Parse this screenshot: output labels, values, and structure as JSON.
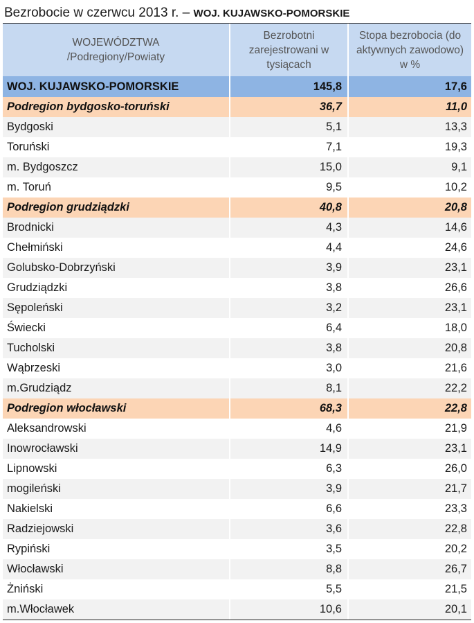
{
  "title": {
    "main": "Bezrobocie w czerwcu 2013 r. –",
    "region": "WOJ. KUJAWSKO-POMORSKIE"
  },
  "header": {
    "col1": "WOJEWÓDZTWA /Podregiony/Powiaty",
    "col2": "Bezrobotni zarejestrowani w tysiącach",
    "col3": "Stopa bezrobocia (do aktywnych zawodowo) w %"
  },
  "rows": [
    {
      "name": "WOJ. KUJAWSKO-POMORSKIE",
      "unemployed": "145,8",
      "rate": "17,6",
      "kind": "voiv"
    },
    {
      "name": "Podregion bydgosko-toruński",
      "unemployed": "36,7",
      "rate": "11,0",
      "kind": "sub"
    },
    {
      "name": "Bydgoski",
      "unemployed": "5,1",
      "rate": "13,3",
      "kind": "grey"
    },
    {
      "name": "Toruński",
      "unemployed": "7,1",
      "rate": "19,3",
      "kind": "white"
    },
    {
      "name": "m. Bydgoszcz",
      "unemployed": "15,0",
      "rate": "9,1",
      "kind": "grey"
    },
    {
      "name": "m. Toruń",
      "unemployed": "9,5",
      "rate": "10,2",
      "kind": "white"
    },
    {
      "name": "Podregion grudziądzki",
      "unemployed": "40,8",
      "rate": "20,8",
      "kind": "sub"
    },
    {
      "name": "Brodnicki",
      "unemployed": "4,3",
      "rate": "14,6",
      "kind": "grey"
    },
    {
      "name": "Chełmiński",
      "unemployed": "4,4",
      "rate": "24,6",
      "kind": "white"
    },
    {
      "name": "Golubsko-Dobrzyński",
      "unemployed": "3,9",
      "rate": "23,1",
      "kind": "grey"
    },
    {
      "name": "Grudziądzki",
      "unemployed": "3,8",
      "rate": "26,6",
      "kind": "white"
    },
    {
      "name": "Sępoleński",
      "unemployed": "3,2",
      "rate": "23,1",
      "kind": "grey"
    },
    {
      "name": "Świecki",
      "unemployed": "6,4",
      "rate": "18,0",
      "kind": "white"
    },
    {
      "name": "Tucholski",
      "unemployed": "3,8",
      "rate": "20,8",
      "kind": "grey"
    },
    {
      "name": "Wąbrzeski",
      "unemployed": "3,0",
      "rate": "21,6",
      "kind": "white"
    },
    {
      "name": "m.Grudziądz",
      "unemployed": "8,1",
      "rate": "22,2",
      "kind": "grey"
    },
    {
      "name": "Podregion włocławski",
      "unemployed": "68,3",
      "rate": "22,8",
      "kind": "sub"
    },
    {
      "name": "Aleksandrowski",
      "unemployed": "4,6",
      "rate": "21,9",
      "kind": "white"
    },
    {
      "name": "Inowrocławski",
      "unemployed": "14,9",
      "rate": "23,1",
      "kind": "grey"
    },
    {
      "name": "Lipnowski",
      "unemployed": "6,3",
      "rate": "26,0",
      "kind": "white"
    },
    {
      "name": "mogileński",
      "unemployed": "3,9",
      "rate": "21,7",
      "kind": "grey"
    },
    {
      "name": "Nakielski",
      "unemployed": "6,6",
      "rate": "23,3",
      "kind": "white"
    },
    {
      "name": "Radziejowski",
      "unemployed": "3,6",
      "rate": "22,8",
      "kind": "grey"
    },
    {
      "name": "Rypiński",
      "unemployed": "3,5",
      "rate": "20,2",
      "kind": "white"
    },
    {
      "name": "Włocławski",
      "unemployed": "8,8",
      "rate": "26,7",
      "kind": "grey"
    },
    {
      "name": "Żniński",
      "unemployed": "5,5",
      "rate": "21,5",
      "kind": "white"
    },
    {
      "name": "m.Włocławek",
      "unemployed": "10,6",
      "rate": "20,1",
      "kind": "grey"
    }
  ],
  "colors": {
    "header_bg": "#c6d9f1",
    "voivodeship_bg": "#8eb4e3",
    "subregion_bg": "#fcd5b5",
    "stripe_bg": "#f2f2f2"
  }
}
